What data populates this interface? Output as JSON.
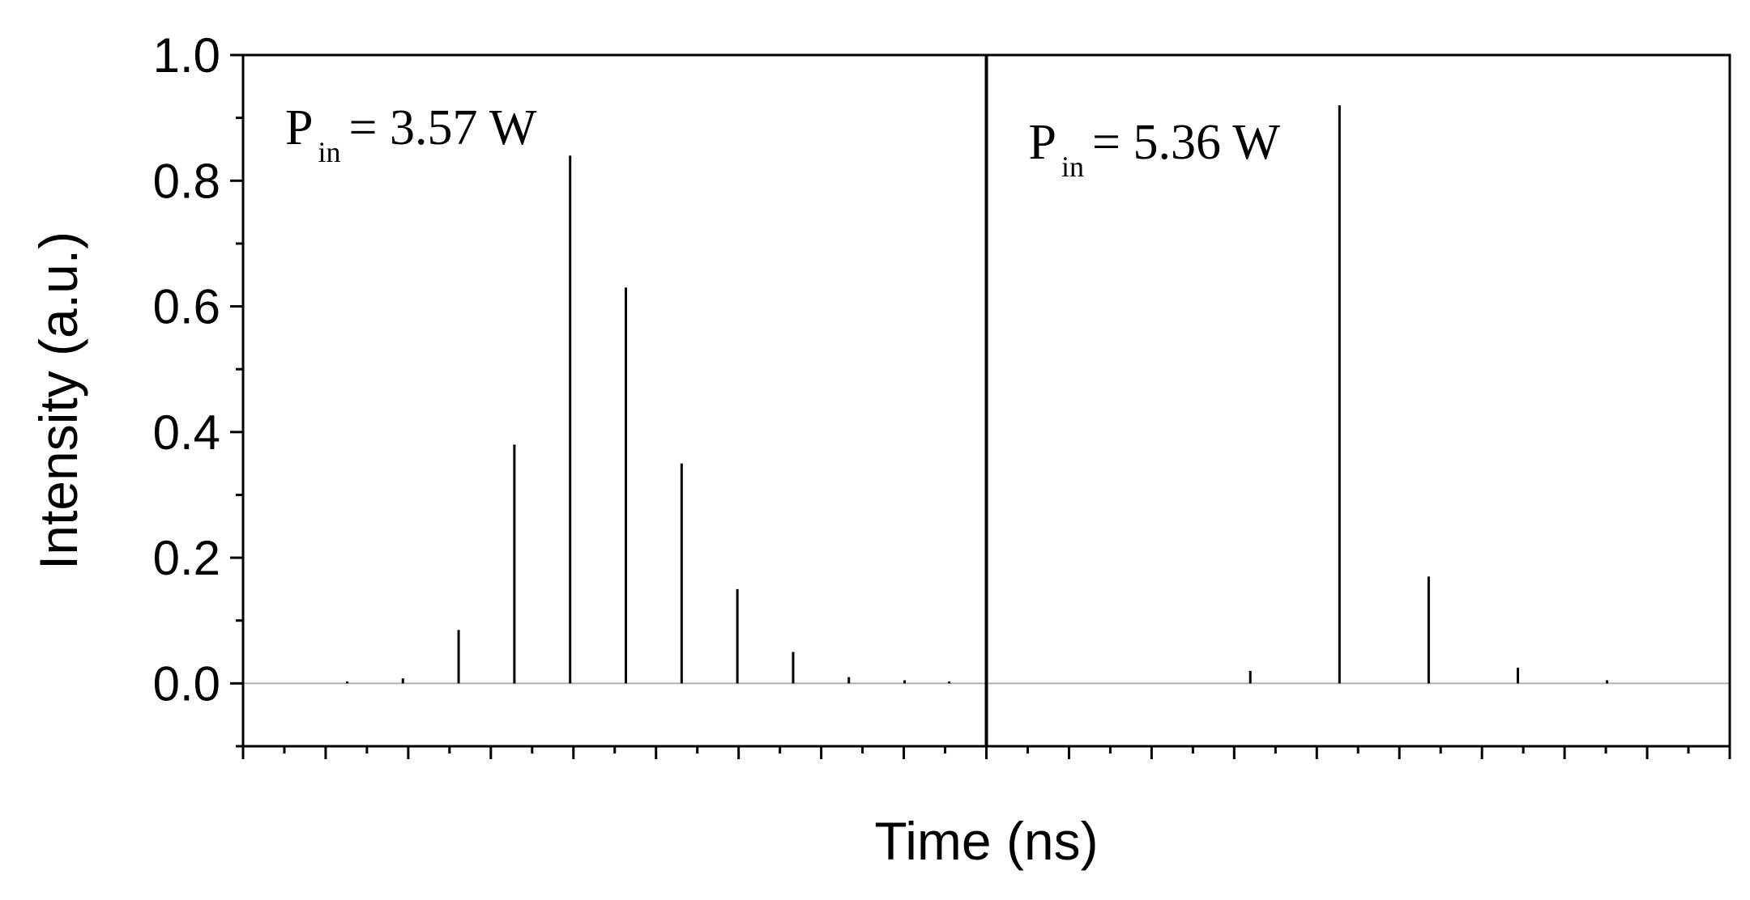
{
  "chart_data": {
    "type": "line",
    "xlabel": "Time (ns)",
    "ylabel": "Intensity (a.u.)",
    "ylim": [
      -0.1,
      1.0
    ],
    "yticks": [
      "0.0",
      "0.2",
      "0.4",
      "0.6",
      "0.8",
      "1.0"
    ],
    "ytick_values": [
      0.0,
      0.2,
      0.4,
      0.6,
      0.8,
      1.0
    ],
    "grid": false,
    "x_tick_labels_shown": false,
    "panels": [
      {
        "annotation": {
          "main": "P",
          "sub": "in",
          "rest": "= 3.57 W"
        },
        "pulses": [
          {
            "x": 0.14,
            "y": 0.003
          },
          {
            "x": 0.215,
            "y": 0.008
          },
          {
            "x": 0.29,
            "y": 0.085
          },
          {
            "x": 0.365,
            "y": 0.38
          },
          {
            "x": 0.44,
            "y": 0.84
          },
          {
            "x": 0.515,
            "y": 0.63
          },
          {
            "x": 0.59,
            "y": 0.35
          },
          {
            "x": 0.665,
            "y": 0.15
          },
          {
            "x": 0.74,
            "y": 0.05
          },
          {
            "x": 0.815,
            "y": 0.01
          },
          {
            "x": 0.89,
            "y": 0.005
          },
          {
            "x": 0.95,
            "y": 0.003
          }
        ]
      },
      {
        "annotation": {
          "main": "P",
          "sub": "in",
          "rest": "= 5.36 W"
        },
        "pulses": [
          {
            "x": 0.355,
            "y": 0.02
          },
          {
            "x": 0.475,
            "y": 0.92
          },
          {
            "x": 0.595,
            "y": 0.17
          },
          {
            "x": 0.715,
            "y": 0.025
          },
          {
            "x": 0.835,
            "y": 0.005
          }
        ]
      }
    ]
  }
}
